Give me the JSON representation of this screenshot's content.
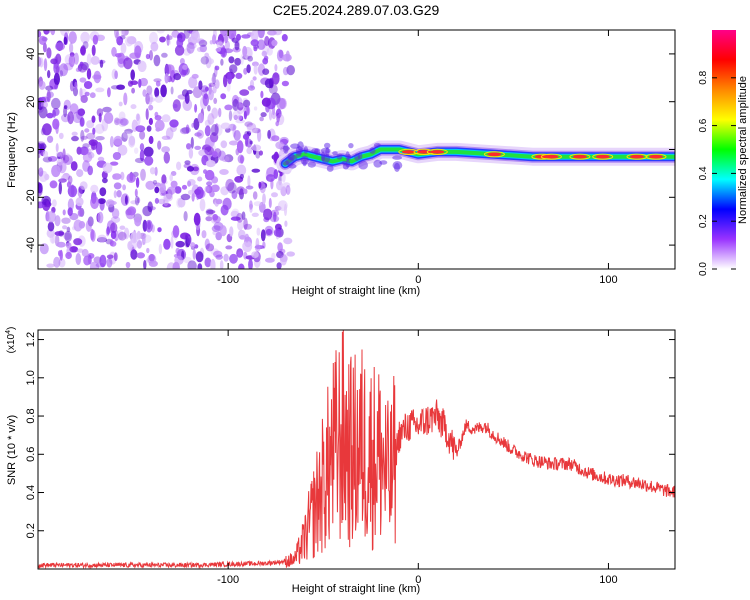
{
  "title": "C2E5.2024.289.07.03.G29",
  "chart_data": [
    {
      "type": "heatmap",
      "xlabel": "Height of straight line (km)",
      "ylabel": "Frequency (Hz)",
      "xlim": [
        -200,
        135
      ],
      "ylim": [
        -50,
        50
      ],
      "x_ticks": [
        -100,
        0,
        100
      ],
      "y_ticks": [
        -40,
        -20,
        0,
        20,
        40
      ],
      "noise_region": {
        "x_from": -200,
        "x_to": -67
      },
      "ridge": {
        "x": [
          -70,
          -65,
          -60,
          -55,
          -50,
          -45,
          -40,
          -35,
          -30,
          -25,
          -20,
          -15,
          -10,
          -5,
          0,
          10,
          20,
          40,
          60,
          80,
          100,
          120,
          135
        ],
        "freq": [
          -6,
          -3,
          -2,
          -3,
          -4,
          -5,
          -4,
          -5,
          -3,
          -2,
          0,
          0,
          0,
          -1,
          -2,
          -1,
          -1,
          -2,
          -3,
          -3,
          -3,
          -3,
          -3
        ]
      },
      "colorbar": {
        "label": "Normalized spectral amplitude",
        "ticks": [
          0.0,
          0.2,
          0.4,
          0.6,
          0.8
        ],
        "range": [
          0,
          1
        ],
        "colors": [
          "#ffffff",
          "#9933ff",
          "#0000ff",
          "#00ffff",
          "#00ff00",
          "#ffff00",
          "#ff8800",
          "#ff0000",
          "#ff0088"
        ]
      }
    },
    {
      "type": "line",
      "xlabel": "Height of straight line (km)",
      "ylabel": "SNR (10 * v/v)",
      "scale_label": "(x10",
      "scale_exp": "4",
      "xlim": [
        -200,
        135
      ],
      "ylim": [
        0,
        1.25
      ],
      "x_ticks": [
        -100,
        0,
        100
      ],
      "y_ticks": [
        0.2,
        0.4,
        0.6,
        0.8,
        1.0,
        1.2
      ],
      "color": "#e8383b",
      "series": [
        {
          "x": [
            -200,
            -180,
            -160,
            -140,
            -120,
            -100,
            -80,
            -70,
            -65,
            -60,
            -55,
            -50,
            -45,
            -40,
            -35,
            -30,
            -25,
            -20,
            -15,
            -10,
            -5,
            0,
            5,
            10,
            15,
            20,
            25,
            30,
            35,
            40,
            50,
            60,
            70,
            80,
            90,
            100,
            110,
            120,
            130,
            135
          ],
          "y": [
            0.02,
            0.02,
            0.02,
            0.02,
            0.02,
            0.025,
            0.03,
            0.04,
            0.05,
            0.15,
            0.3,
            0.45,
            0.6,
            0.7,
            0.6,
            0.65,
            0.6,
            0.6,
            0.45,
            0.7,
            0.75,
            0.75,
            0.78,
            0.8,
            0.72,
            0.6,
            0.75,
            0.73,
            0.75,
            0.7,
            0.62,
            0.57,
            0.55,
            0.55,
            0.5,
            0.47,
            0.46,
            0.44,
            0.41,
            0.4
          ]
        }
      ]
    }
  ]
}
